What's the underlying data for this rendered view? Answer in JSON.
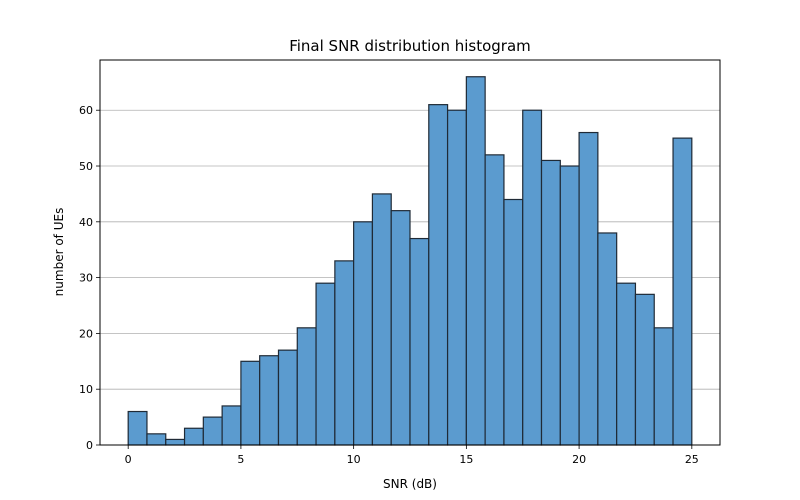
{
  "chart_data": {
    "type": "bar",
    "title": "Final SNR distribution histogram",
    "xlabel": "SNR (dB)",
    "ylabel": "number of UEs",
    "xlim": [
      -1.25,
      26.25
    ],
    "ylim": [
      0,
      69
    ],
    "xticks": [
      0,
      5,
      10,
      15,
      20,
      25
    ],
    "yticks": [
      0,
      10,
      20,
      30,
      40,
      50,
      60
    ],
    "grid": "y",
    "bar_color": "#5b9bcf",
    "edge_color": "#1f2a36",
    "bins": [
      {
        "start": 0.0,
        "end": 0.833,
        "count": 6
      },
      {
        "start": 0.833,
        "end": 1.667,
        "count": 2
      },
      {
        "start": 1.667,
        "end": 2.5,
        "count": 1
      },
      {
        "start": 2.5,
        "end": 3.333,
        "count": 3
      },
      {
        "start": 3.333,
        "end": 4.167,
        "count": 5
      },
      {
        "start": 4.167,
        "end": 5.0,
        "count": 7
      },
      {
        "start": 5.0,
        "end": 5.833,
        "count": 15
      },
      {
        "start": 5.833,
        "end": 6.667,
        "count": 16
      },
      {
        "start": 6.667,
        "end": 7.5,
        "count": 17
      },
      {
        "start": 7.5,
        "end": 8.333,
        "count": 21
      },
      {
        "start": 8.333,
        "end": 9.167,
        "count": 29
      },
      {
        "start": 9.167,
        "end": 10.0,
        "count": 33
      },
      {
        "start": 10.0,
        "end": 10.833,
        "count": 40
      },
      {
        "start": 10.833,
        "end": 11.667,
        "count": 45
      },
      {
        "start": 11.667,
        "end": 12.5,
        "count": 42
      },
      {
        "start": 12.5,
        "end": 13.333,
        "count": 37
      },
      {
        "start": 13.333,
        "end": 14.167,
        "count": 61
      },
      {
        "start": 14.167,
        "end": 15.0,
        "count": 60
      },
      {
        "start": 15.0,
        "end": 15.833,
        "count": 66
      },
      {
        "start": 15.833,
        "end": 16.667,
        "count": 52
      },
      {
        "start": 16.667,
        "end": 17.5,
        "count": 44
      },
      {
        "start": 17.5,
        "end": 18.333,
        "count": 60
      },
      {
        "start": 18.333,
        "end": 19.167,
        "count": 51
      },
      {
        "start": 19.167,
        "end": 20.0,
        "count": 50
      },
      {
        "start": 20.0,
        "end": 20.833,
        "count": 56
      },
      {
        "start": 20.833,
        "end": 21.667,
        "count": 38
      },
      {
        "start": 21.667,
        "end": 22.5,
        "count": 29
      },
      {
        "start": 22.5,
        "end": 23.333,
        "count": 27
      },
      {
        "start": 23.333,
        "end": 24.167,
        "count": 21
      },
      {
        "start": 24.167,
        "end": 25.0,
        "count": 55
      }
    ]
  }
}
